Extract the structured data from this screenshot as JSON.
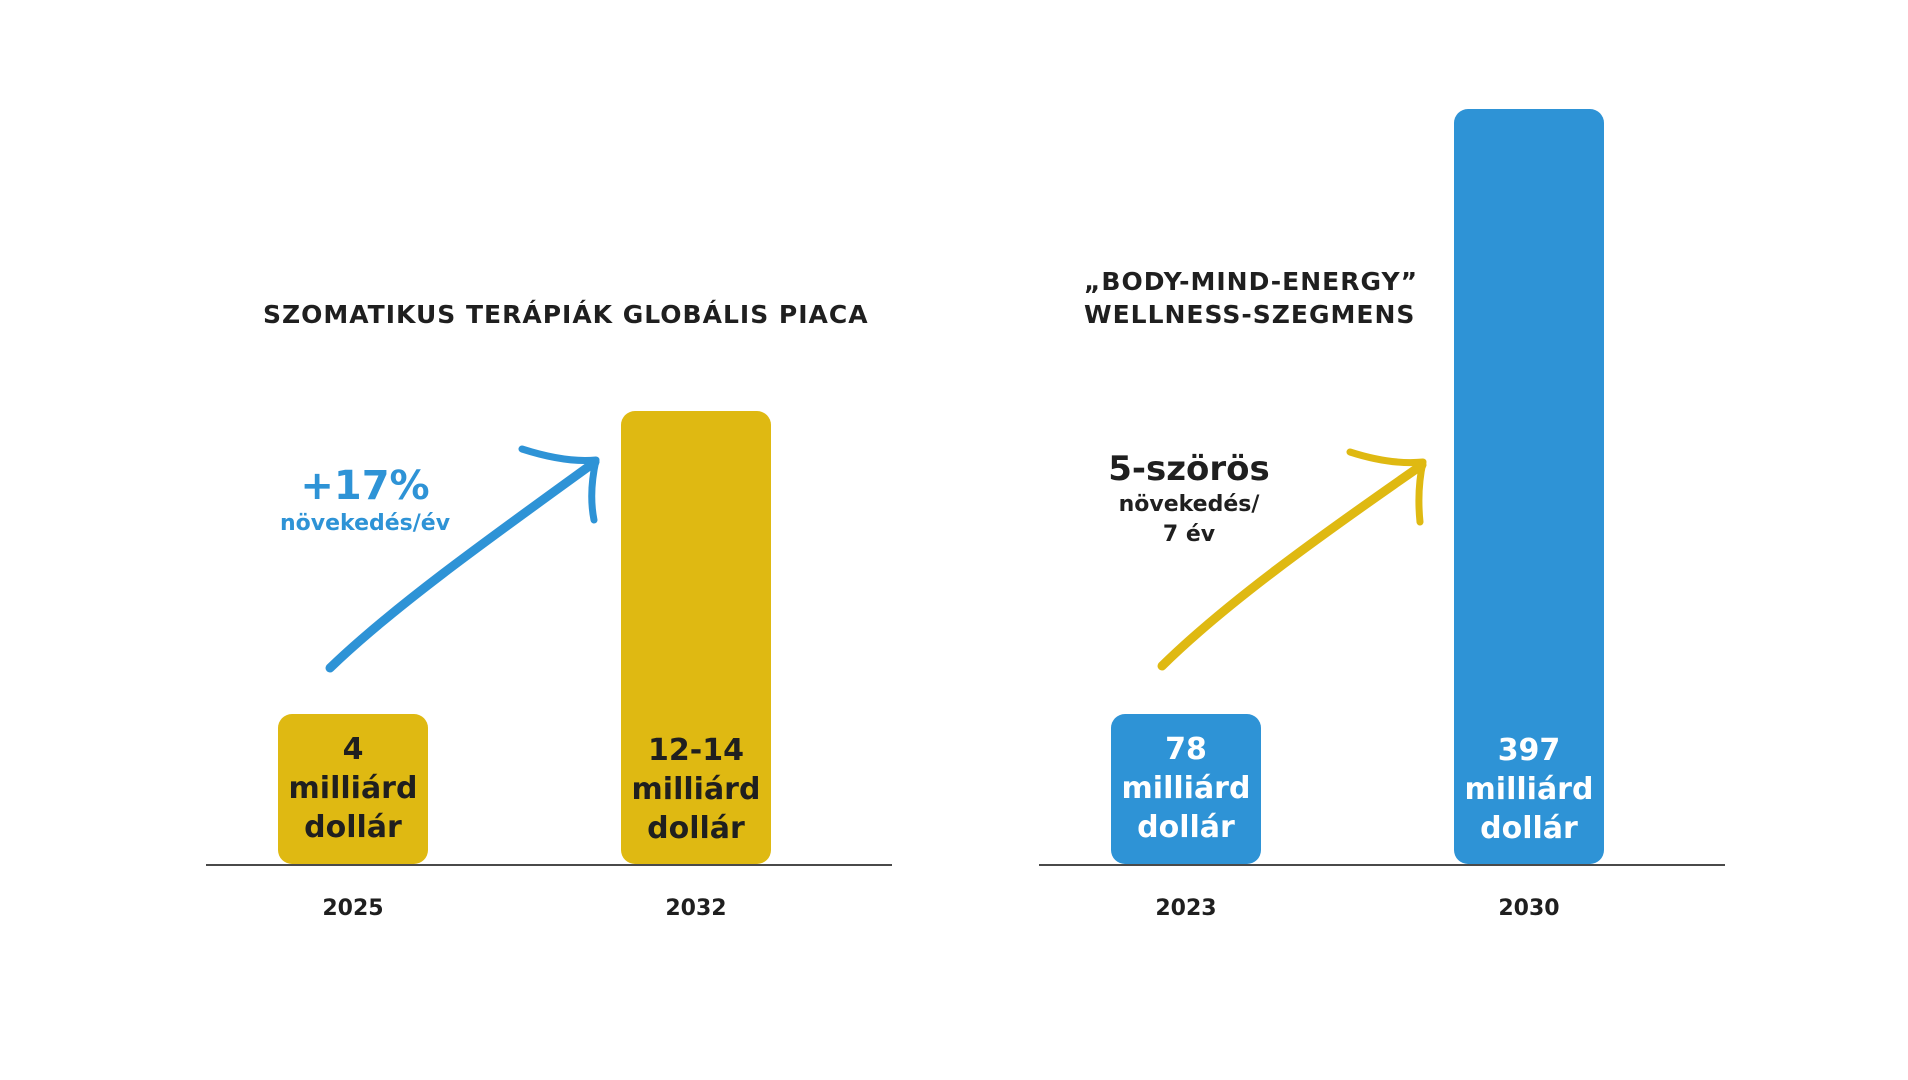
{
  "colors": {
    "yellow": "#dfb912",
    "blue": "#2e93d6",
    "dark": "#1f1f1f",
    "white": "#ffffff"
  },
  "chart_data": [
    {
      "type": "bar",
      "title": "SZOMATIKUS TERÁPIÁK GLOBÁLIS PIACA",
      "categories": [
        "2025",
        "2032"
      ],
      "values": [
        4,
        13
      ],
      "value_labels": [
        [
          "4",
          "milliárd",
          "dollár"
        ],
        [
          "12-14",
          "milliárd",
          "dollár"
        ]
      ],
      "bar_color": "#dfb912",
      "label_color": "#1f1f1f",
      "annotation": {
        "main": "+17%",
        "sub": [
          "növekedés/év"
        ],
        "color": "#2e93d6"
      },
      "arrow_color": "#2e93d6"
    },
    {
      "type": "bar",
      "title_lines": [
        "„BODY-MIND-ENERGY”",
        "WELLNESS-SZEGMENS"
      ],
      "categories": [
        "2023",
        "2030"
      ],
      "values": [
        78,
        397
      ],
      "value_labels": [
        [
          "78",
          "milliárd",
          "dollár"
        ],
        [
          "397",
          "milliárd",
          "dollár"
        ]
      ],
      "bar_color": "#2e93d6",
      "label_color": "#ffffff",
      "annotation": {
        "main": "5-szörös",
        "sub": [
          "növekedés/",
          "7 év"
        ],
        "color": "#1f1f1f"
      },
      "arrow_color": "#dfb912"
    }
  ]
}
